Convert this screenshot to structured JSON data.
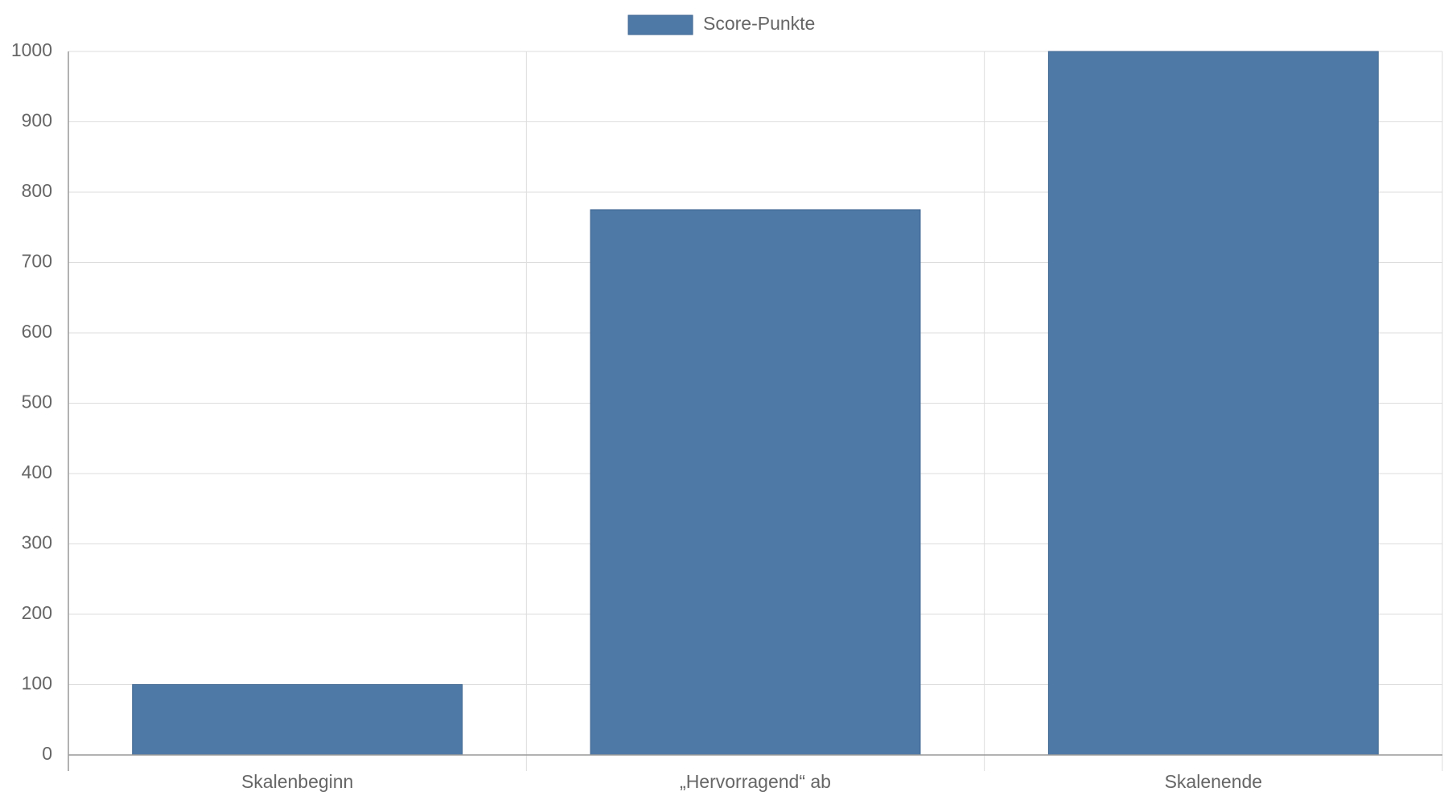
{
  "chart_data": {
    "type": "bar",
    "categories": [
      "Skalenbeginn",
      "„Hervorragend“ ab",
      "Skalenende"
    ],
    "series": [
      {
        "name": "Score-Punkte",
        "color": "#4e79a7",
        "values": [
          100,
          775,
          1000
        ]
      }
    ],
    "ylim": [
      0,
      1000
    ],
    "yticks": [
      0,
      100,
      200,
      300,
      400,
      500,
      600,
      700,
      800,
      900,
      1000
    ],
    "grid": true,
    "legend": "top"
  }
}
